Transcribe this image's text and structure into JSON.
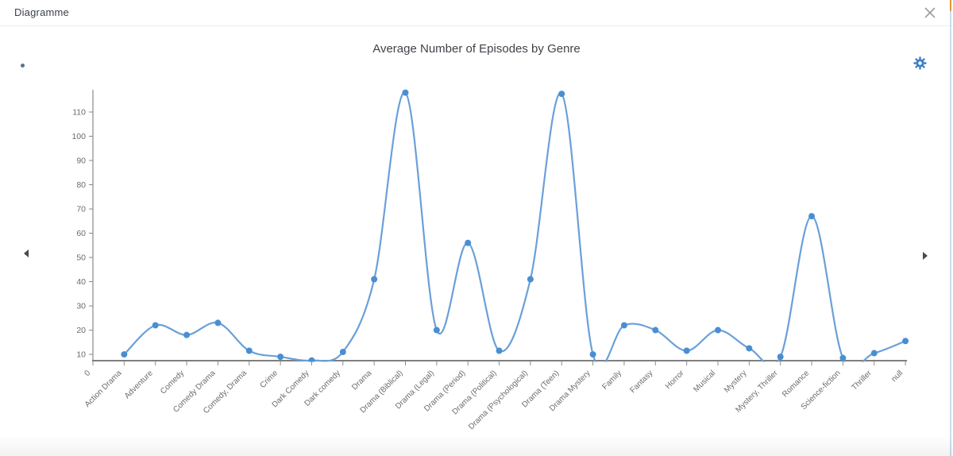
{
  "dialog": {
    "title": "Diagramme"
  },
  "icons": {
    "close": "close-icon",
    "settings": "gear-icon",
    "prev": "chevron-left-icon",
    "next": "chevron-right-icon"
  },
  "colors": {
    "line": "#6aa0d8",
    "point": "#4a8ed2",
    "axis": "#8a8a8a",
    "tick_label": "#6b6b6b",
    "gear": "#3f80c4",
    "edge_accent_orange": "#e2973d",
    "edge_accent_blue": "#c9dff1"
  },
  "chart_data": {
    "type": "line",
    "title": "Average Number of Episodes by Genre",
    "xlabel": "",
    "ylabel": "",
    "smooth": true,
    "grid": false,
    "legend": "none",
    "x_axis_origin_label": "0",
    "categories": [
      "Action Drama",
      "Adventure",
      "Comedy",
      "Comedy Drama",
      "Comedy, Drama",
      "Crime",
      "Dark Comedy",
      "Dark comedy",
      "Drama",
      "Drama (Biblical)",
      "Drama (Legal)",
      "Drama (Period)",
      "Drama (Political)",
      "Drama (Psychological)",
      "Drama (Teen)",
      "Drama Mystery",
      "Family",
      "Fantasy",
      "Horror",
      "Musical",
      "Mystery",
      "Mystery, Thriller",
      "Romance",
      "Science-fiction",
      "Thriller",
      "null"
    ],
    "values": [
      10,
      22,
      18,
      23,
      11.5,
      9,
      7.5,
      11,
      41,
      118,
      20,
      56,
      11.5,
      41,
      117.5,
      10,
      22,
      20,
      11.5,
      20,
      12.5,
      9,
      67,
      8.5,
      10.5,
      15.5
    ],
    "y_ticks": [
      10,
      20,
      30,
      40,
      50,
      60,
      70,
      80,
      90,
      100,
      110
    ],
    "ylim": [
      7.4,
      119
    ]
  }
}
